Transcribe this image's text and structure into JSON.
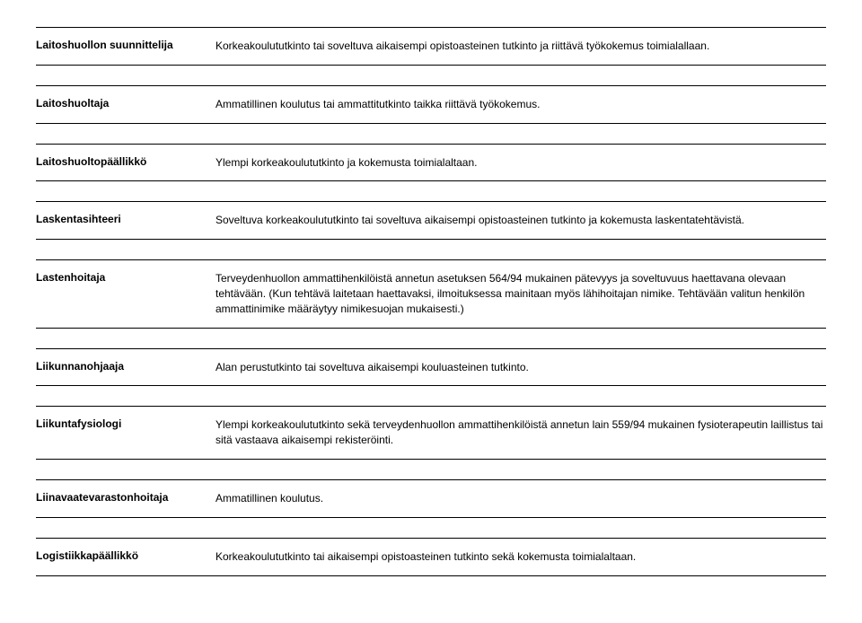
{
  "rows": [
    {
      "title": "Laitoshuollon suunnittelija",
      "desc": "Korkeakoulututkinto tai soveltuva aikaisempi opistoasteinen tutkinto ja riittävä työkokemus toimialallaan."
    },
    {
      "title": "Laitoshuoltaja",
      "desc": "Ammatillinen koulutus tai ammattitutkinto taikka riittävä työkokemus."
    },
    {
      "title": "Laitoshuoltopäällikkö",
      "desc": "Ylempi korkeakoulututkinto ja kokemusta toimialaltaan."
    },
    {
      "title": "Laskentasihteeri",
      "desc": "Soveltuva korkeakoulututkinto tai soveltuva aikaisempi opistoasteinen tutkinto ja kokemusta laskentatehtävistä."
    },
    {
      "title": "Lastenhoitaja",
      "desc": "Terveydenhuollon ammattihenkilöistä annetun asetuksen 564/94 mukainen pätevyys ja soveltuvuus haettavana olevaan tehtävään. (Kun tehtävä laitetaan haettavaksi, ilmoituksessa mainitaan myös lähihoitajan nimike. Tehtävään valitun henkilön ammattinimike määräytyy nimikesuojan mukaisesti.)"
    },
    {
      "title": "Liikunnanohjaaja",
      "desc": "Alan perustutkinto tai soveltuva aikaisempi kouluasteinen tutkinto."
    },
    {
      "title": "Liikuntafysiologi",
      "desc": "Ylempi korkeakoulututkinto sekä terveydenhuollon ammattihenkilöistä annetun lain 559/94 mukainen fysioterapeutin laillistus tai sitä vastaava aikaisempi rekisteröinti."
    },
    {
      "title": "Liinavaatevarastonhoitaja",
      "desc": "Ammatillinen koulutus."
    },
    {
      "title": "Logistiikkapäällikkö",
      "desc": "Korkeakoulututkinto tai aikaisempi opistoasteinen tutkinto sekä kokemusta toimialaltaan."
    }
  ]
}
